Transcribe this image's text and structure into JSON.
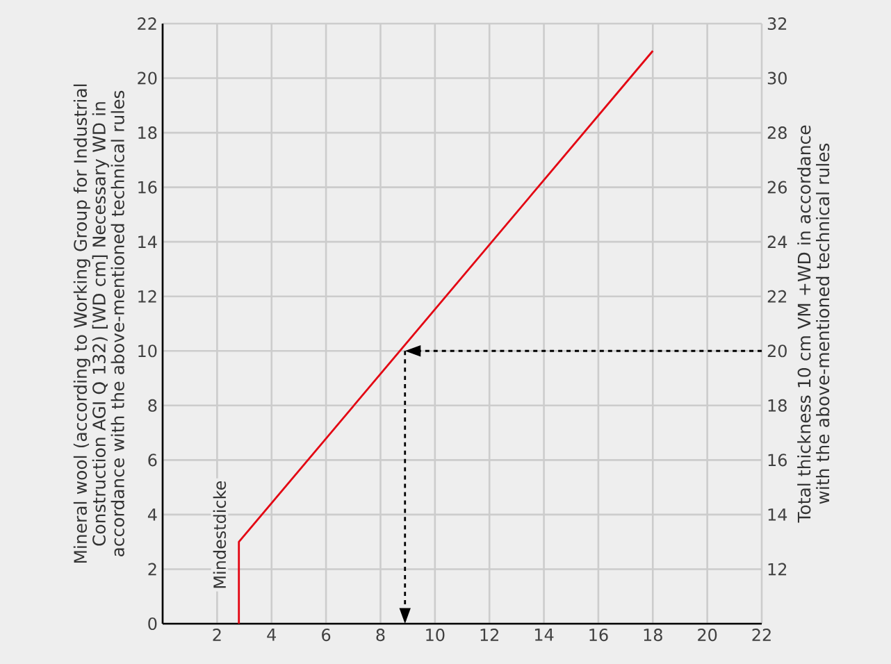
{
  "chart_data": {
    "type": "line",
    "ylabel": "Mineral wool (according to Working Group for Industrial Construction AGI Q 132) [WD cm] Necessary WD in accordance with the above-mentioned technical rules",
    "y2label": "Total thickness 10 cm VM +WD in accordance with the above-mentioned technical rules",
    "annotations": [
      "Mindestdicke"
    ],
    "xlim": [
      0,
      22
    ],
    "xticks": [
      {
        "value": 0,
        "label": null
      },
      2,
      4,
      6,
      8,
      10,
      12,
      14,
      16,
      18,
      20,
      22
    ],
    "ylim": [
      0,
      22
    ],
    "yticks": [
      0,
      2,
      4,
      6,
      8,
      10,
      12,
      14,
      16,
      18,
      20,
      22
    ],
    "y2lim": [
      10,
      32
    ],
    "y2ticks": [
      {
        "value": 10,
        "label": null
      },
      12,
      14,
      16,
      18,
      20,
      22,
      24,
      26,
      28,
      30,
      32
    ],
    "grid": true,
    "series": [
      {
        "color": "#e30613",
        "x": [
          2.8,
          2.8,
          18
        ],
        "values": [
          0,
          3,
          21
        ]
      },
      {
        "color": "#000000",
        "line_style": "dashed",
        "x": [
          22,
          8.9
        ],
        "values": [
          10,
          10
        ]
      },
      {
        "color": "#000000",
        "line_style": "dashed",
        "x": [
          8.9,
          8.9
        ],
        "values": [
          10,
          0
        ]
      }
    ]
  }
}
